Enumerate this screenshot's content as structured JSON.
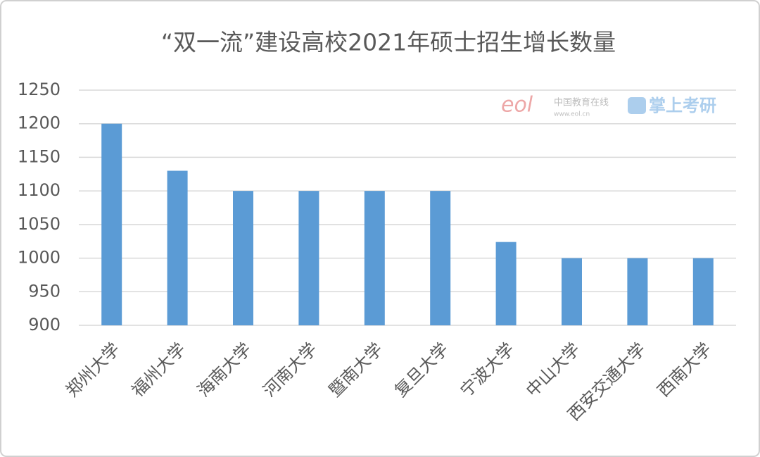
{
  "chart_data": {
    "type": "bar",
    "title": "“双一流”建设高校2021年硕士招生增长数量",
    "categories": [
      "郑州大学",
      "福州大学",
      "海南大学",
      "河南大学",
      "暨南大学",
      "复旦大学",
      "宁波大学",
      "中山大学",
      "西安交通大学",
      "西南大学"
    ],
    "values": [
      1200,
      1130,
      1100,
      1100,
      1100,
      1100,
      1024,
      1000,
      1000,
      1000
    ],
    "color": "#5b9bd5",
    "ylim": [
      900,
      1250
    ],
    "yticks": [
      900,
      950,
      1000,
      1050,
      1100,
      1150,
      1200,
      1250
    ],
    "grid": true,
    "watermark": [
      "eol",
      "中国教育在线",
      "www.eol.cn",
      "掌上考研"
    ]
  }
}
